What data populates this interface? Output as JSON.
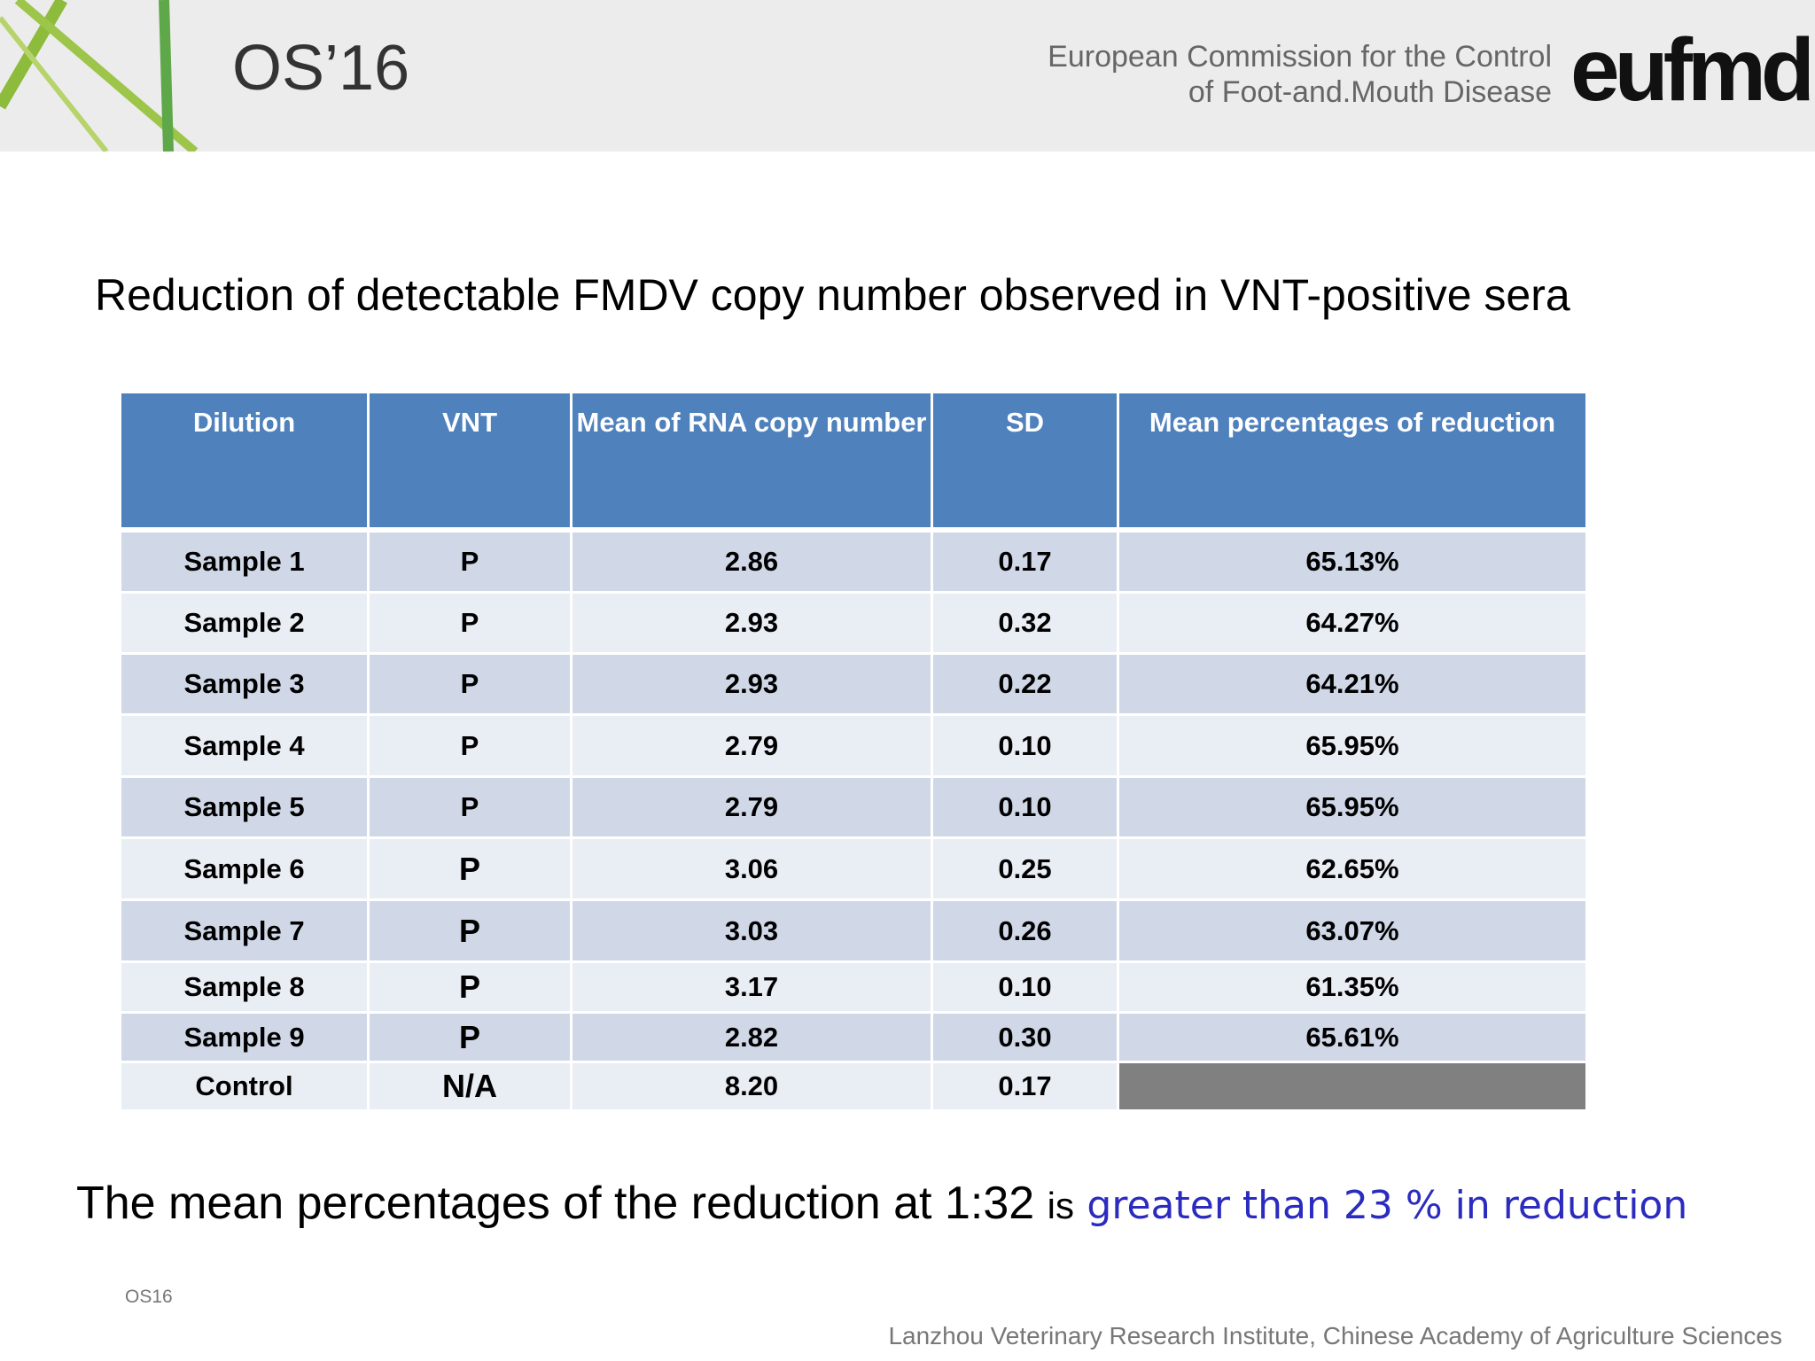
{
  "header": {
    "event": "OS’16",
    "org_lines": [
      "European Commission for the Control",
      "of Foot-and.Mouth Disease"
    ],
    "logo": "eufmd"
  },
  "title": "Reduction of detectable FMDV copy number observed in  VNT-positive sera",
  "table": {
    "columns": [
      "Dilution",
      "VNT",
      "Mean of RNA copy number",
      "SD",
      "Mean percentages of reduction"
    ],
    "rows": [
      [
        "Sample 1",
        "P",
        "2.86",
        "0.17",
        "65.13%"
      ],
      [
        "Sample 2",
        "P",
        "2.93",
        "0.32",
        "64.27%"
      ],
      [
        "Sample 3",
        "P",
        "2.93",
        "0.22",
        "64.21%"
      ],
      [
        "Sample 4",
        "P",
        "2.79",
        "0.10",
        "65.95%"
      ],
      [
        "Sample 5",
        "P",
        "2.79",
        "0.10",
        "65.95%"
      ],
      [
        "Sample 6",
        "P",
        "3.06",
        "0.25",
        "62.65%"
      ],
      [
        "Sample 7",
        "P",
        "3.03",
        "0.26",
        "63.07%"
      ],
      [
        "Sample 8",
        "P",
        "3.17",
        "0.10",
        "61.35%"
      ],
      [
        "Sample 9",
        "P",
        "2.82",
        "0.30",
        "65.61%"
      ],
      [
        "Control",
        "N/A",
        "8.20",
        "0.17"
      ]
    ]
  },
  "conclusion": {
    "lead": "The mean percentages of the reduction  at 1:32",
    "verb": "is",
    "highlight": "greater than 23 % in reduction"
  },
  "footer": {
    "code": "OS16",
    "institute": "Lanzhou Veterinary Research Institute, Chinese Academy of Agriculture Sciences"
  }
}
